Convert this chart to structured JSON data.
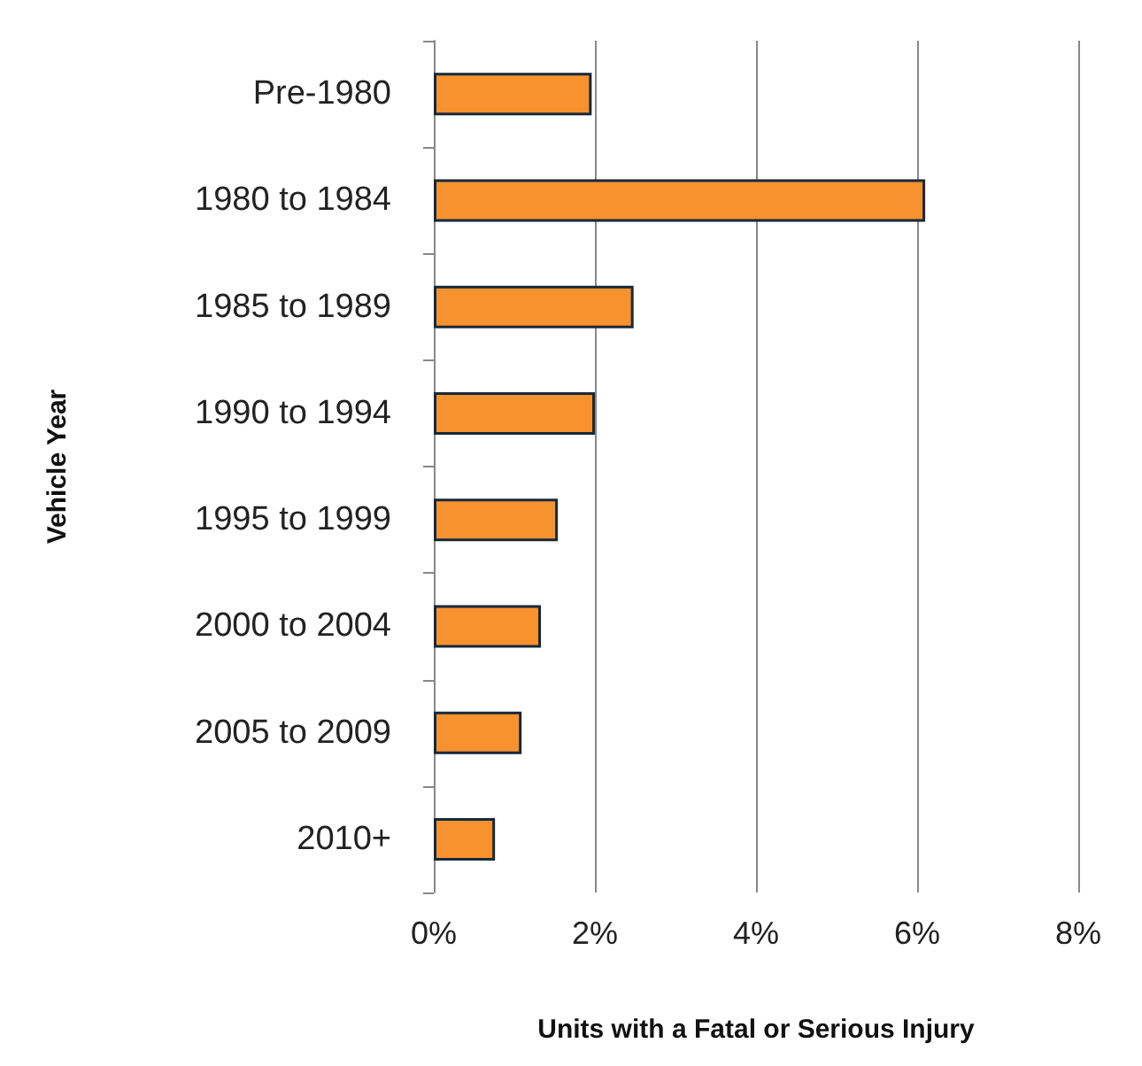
{
  "chart_data": {
    "type": "bar",
    "orientation": "horizontal",
    "xlabel": "Units with a Fatal or Serious Injury",
    "ylabel": "Vehicle Year",
    "categories": [
      "Pre-1980",
      "1980 to 1984",
      "1985 to 1989",
      "1990 to 1994",
      "1995 to 1999",
      "2000 to 2004",
      "2005 to 2009",
      "2010+"
    ],
    "values": [
      1.96,
      6.1,
      2.48,
      2.0,
      1.54,
      1.33,
      1.09,
      0.76
    ],
    "color": "#f7922f",
    "xlim": [
      0,
      8
    ],
    "xticks": [
      {
        "value": 0,
        "label": "0%"
      },
      {
        "value": 2,
        "label": "2%"
      },
      {
        "value": 4,
        "label": "4%"
      },
      {
        "value": 6,
        "label": "6%"
      },
      {
        "value": 8,
        "label": "8%"
      }
    ],
    "grid": "x"
  }
}
